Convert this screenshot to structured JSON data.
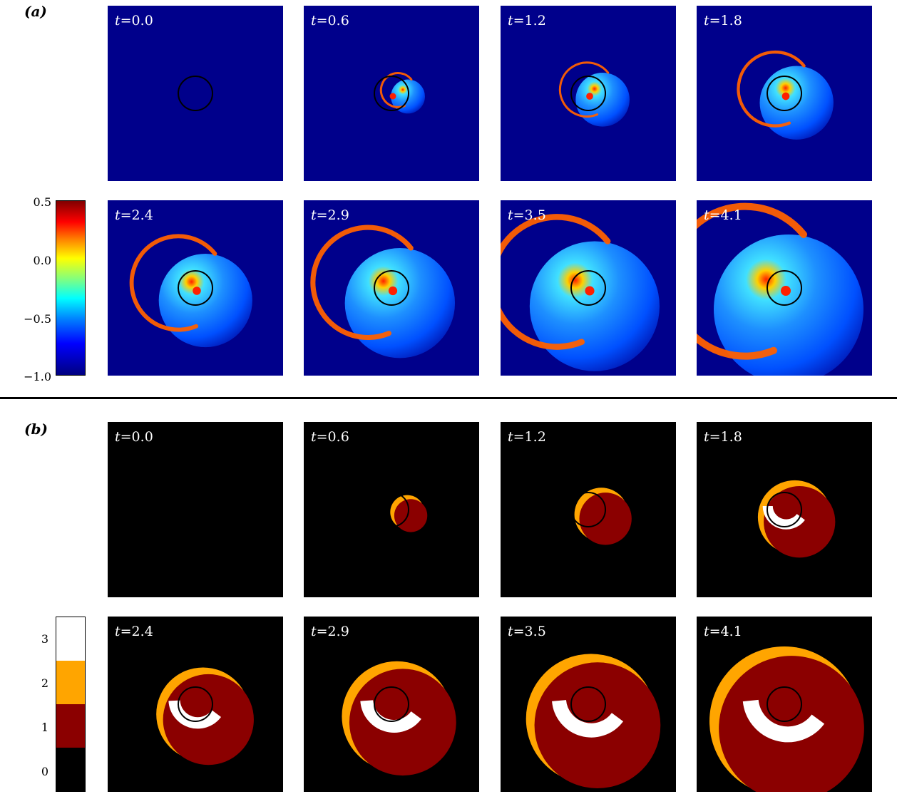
{
  "figure": {
    "panel_a_label": "(a)",
    "panel_b_label": "(b)",
    "frame_times": [
      "0.0",
      "0.6",
      "1.2",
      "1.8",
      "2.4",
      "2.9",
      "3.5",
      "4.1"
    ],
    "panel_a": {
      "colormap": "jet",
      "colorbar_ticks": [
        "0.5",
        "0.0",
        "−0.5",
        "−1.0"
      ],
      "colorbar_range": [
        -1.0,
        0.5
      ]
    },
    "panel_b": {
      "colorbar_ticks": [
        "3",
        "2",
        "1",
        "0"
      ],
      "categories": [
        {
          "value": 0,
          "color": "#000000"
        },
        {
          "value": 1,
          "color": "#8b0000"
        },
        {
          "value": 2,
          "color": "#ffa500"
        },
        {
          "value": 3,
          "color": "#ffffff"
        }
      ]
    },
    "colors": {
      "background_a": "#00008b",
      "background_b": "#000000",
      "circle_stroke": "#000000"
    }
  }
}
